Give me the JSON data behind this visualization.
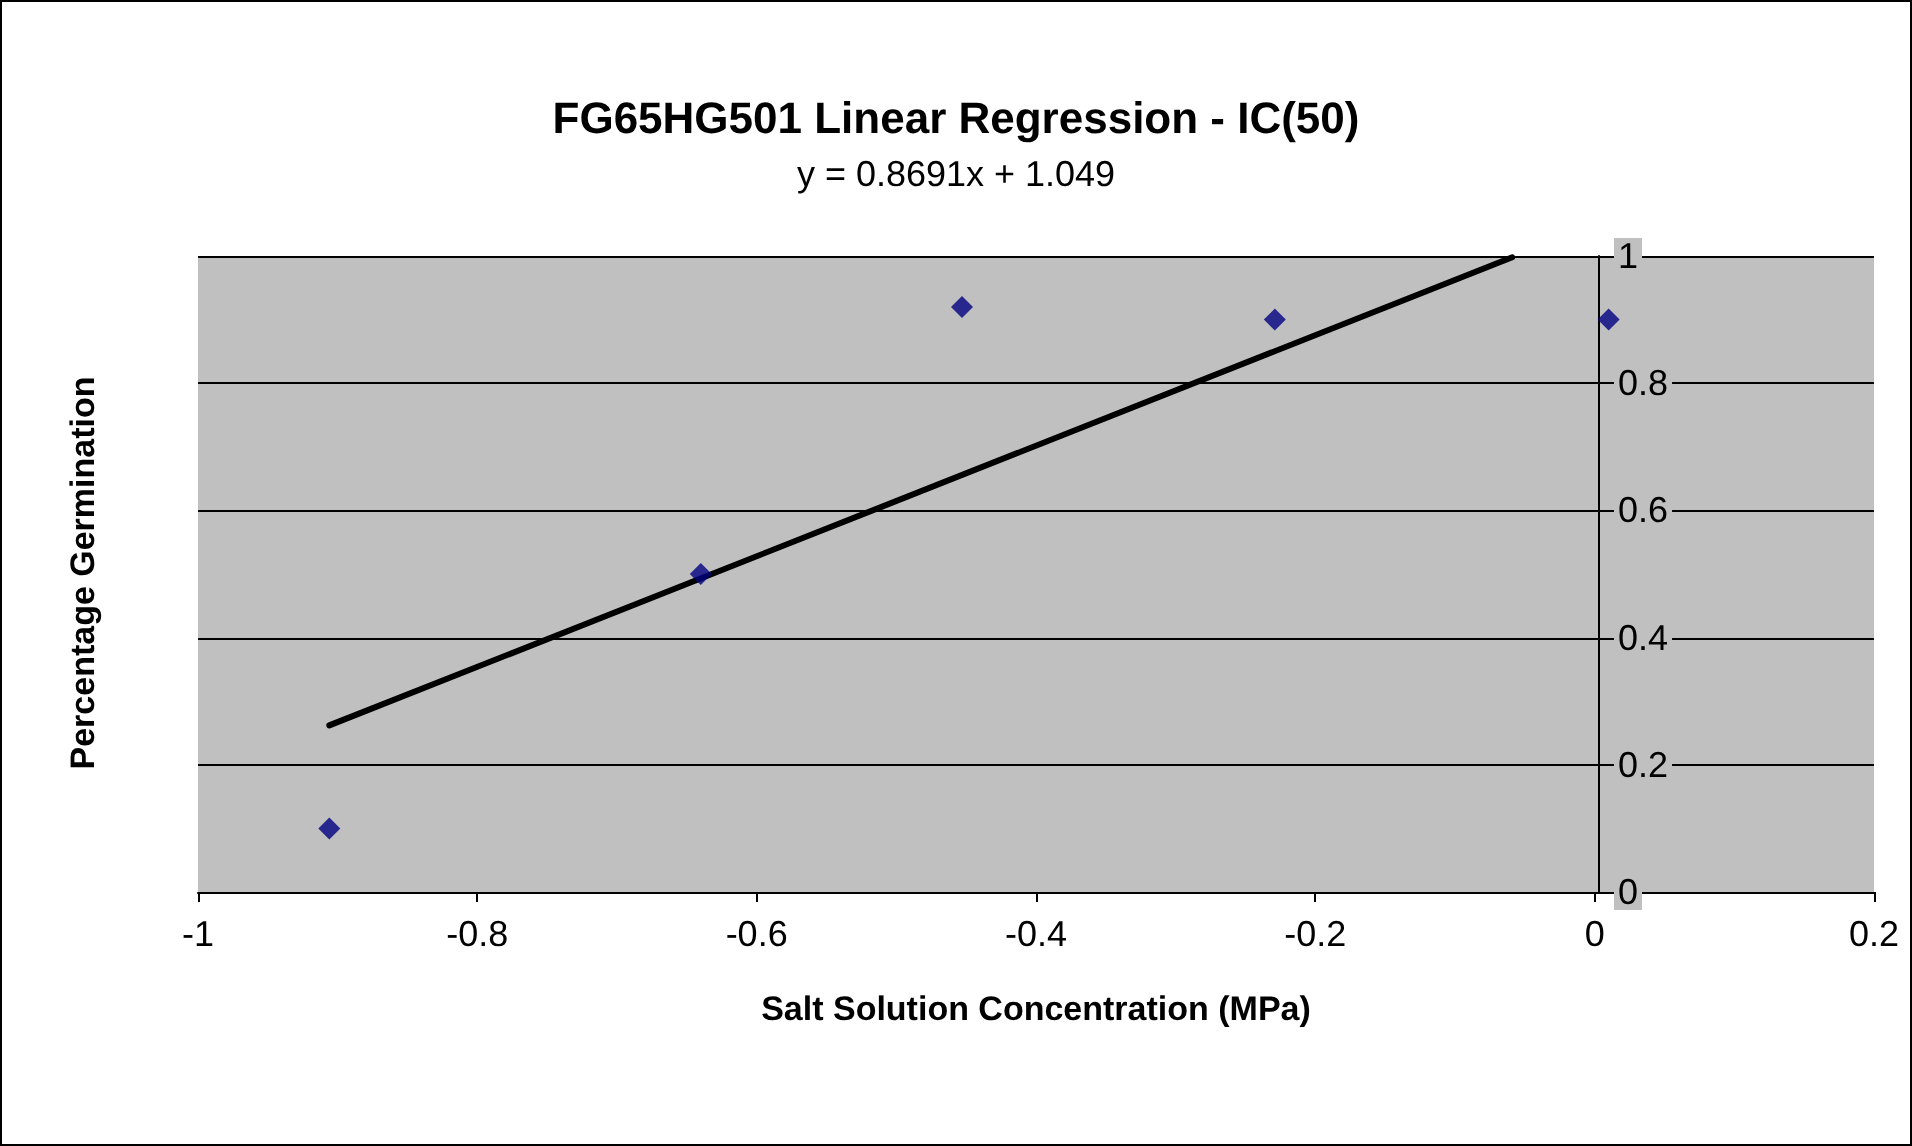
{
  "chart_data": {
    "type": "scatter",
    "title": "FG65HG501 Linear Regression - IC(50)",
    "subtitle": "y = 0.8691x + 1.049",
    "xlabel": "Salt Solution Concentration (MPa)",
    "ylabel": "Percentage Germination",
    "x": [
      -0.906,
      -0.64,
      -0.453,
      -0.229,
      0.01
    ],
    "series": [
      {
        "color": "#000080",
        "values": [
          0.1,
          0.5,
          0.92,
          0.9,
          0.9
        ],
        "marker": "diamond"
      },
      {
        "type": "line",
        "color": "#000000",
        "x": [
          -0.906,
          -0.059
        ],
        "values": [
          0.262,
          0.998
        ],
        "marker": "none",
        "line_style": "solid"
      }
    ],
    "xlim": [
      -1,
      0.2
    ],
    "xticks": [
      -1,
      -0.8,
      -0.6,
      -0.4,
      -0.2,
      0,
      0.2
    ],
    "ylim": [
      0,
      1
    ],
    "yticks": [
      0,
      0.2,
      0.4,
      0.6,
      0.8,
      1
    ],
    "grid": "y"
  }
}
